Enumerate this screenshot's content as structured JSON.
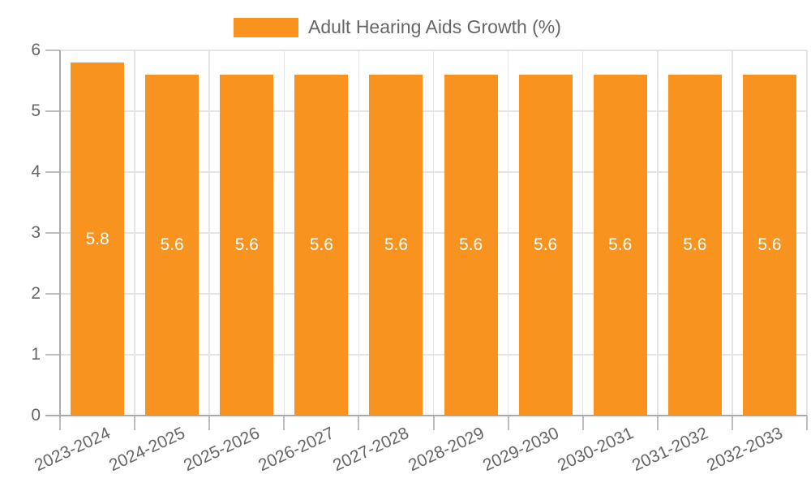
{
  "legend": {
    "label": "Adult Hearing Aids Growth (%)"
  },
  "colors": {
    "bar": "#F7931E",
    "grid": "#E4E4E4",
    "axis": "#AAAAAA",
    "tick": "#BDBDBD",
    "text": "#666666",
    "bar_label": "#FFFFFF",
    "background": "#FFFFFF"
  },
  "chart_data": {
    "type": "bar",
    "title": "",
    "xlabel": "",
    "ylabel": "",
    "categories": [
      "2023-2024",
      "2024-2025",
      "2025-2026",
      "2026-2027",
      "2027-2028",
      "2028-2029",
      "2029-2030",
      "2030-2031",
      "2031-2032",
      "2032-2033"
    ],
    "series": [
      {
        "name": "Adult Hearing Aids Growth (%)",
        "color": "#F7931E",
        "values": [
          5.8,
          5.6,
          5.6,
          5.6,
          5.6,
          5.6,
          5.6,
          5.6,
          5.6,
          5.6
        ]
      }
    ],
    "bar_value_labels": [
      "5.8",
      "5.6",
      "5.6",
      "5.6",
      "5.6",
      "5.6",
      "5.6",
      "5.6",
      "5.6",
      "5.6"
    ],
    "ylim": [
      0,
      6
    ],
    "yticks": [
      0,
      1,
      2,
      3,
      4,
      5,
      6
    ],
    "grid": true,
    "legend_position": "top-center",
    "x_label_rotation_deg": -25
  }
}
